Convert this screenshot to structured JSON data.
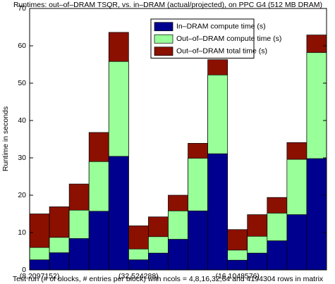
{
  "chart_data": {
    "type": "bar",
    "overlap": true,
    "title": "Runtimes: out–of–DRAM TSQR, vs. in–DRAM (actual/projected), on PPC G4 (512 MB DRAM)",
    "xlabel": "Test run (# of blocks, # entries per block) with ncols = 4,8,16,32,64 and 4194304 rows in matrix",
    "ylabel": "Runtime in seconds",
    "categories": [
      "(8,2097152)",
      null,
      null,
      null,
      null,
      "(32,524288)",
      null,
      null,
      null,
      null,
      "(16,1048576)",
      null,
      null,
      null,
      null
    ],
    "series": [
      {
        "name": "In–DRAM compute time (s)",
        "color": "#00008f",
        "values": [
          2.7,
          4.6,
          8.4,
          15.7,
          30.4,
          2.7,
          4.5,
          8.2,
          15.8,
          31.1,
          2.6,
          4.5,
          7.8,
          14.8,
          29.8
        ]
      },
      {
        "name": "Out–of–DRAM compute time (s)",
        "color": "#99ff99",
        "values": [
          6.0,
          8.7,
          16.0,
          29.0,
          55.8,
          5.6,
          8.9,
          15.8,
          29.9,
          52.2,
          5.3,
          9.0,
          15.2,
          29.6,
          58.2
        ]
      },
      {
        "name": "Out–of–DRAM total time (s)",
        "color": "#8b1000",
        "values": [
          15.0,
          16.9,
          23.0,
          36.8,
          63.6,
          11.8,
          14.2,
          20.0,
          33.9,
          56.3,
          10.8,
          14.8,
          19.4,
          34.1,
          62.9
        ]
      }
    ],
    "ylim": [
      0,
      70
    ],
    "yticks": [
      0,
      10,
      20,
      30,
      40,
      50,
      60,
      70
    ],
    "legend": "top-center"
  }
}
